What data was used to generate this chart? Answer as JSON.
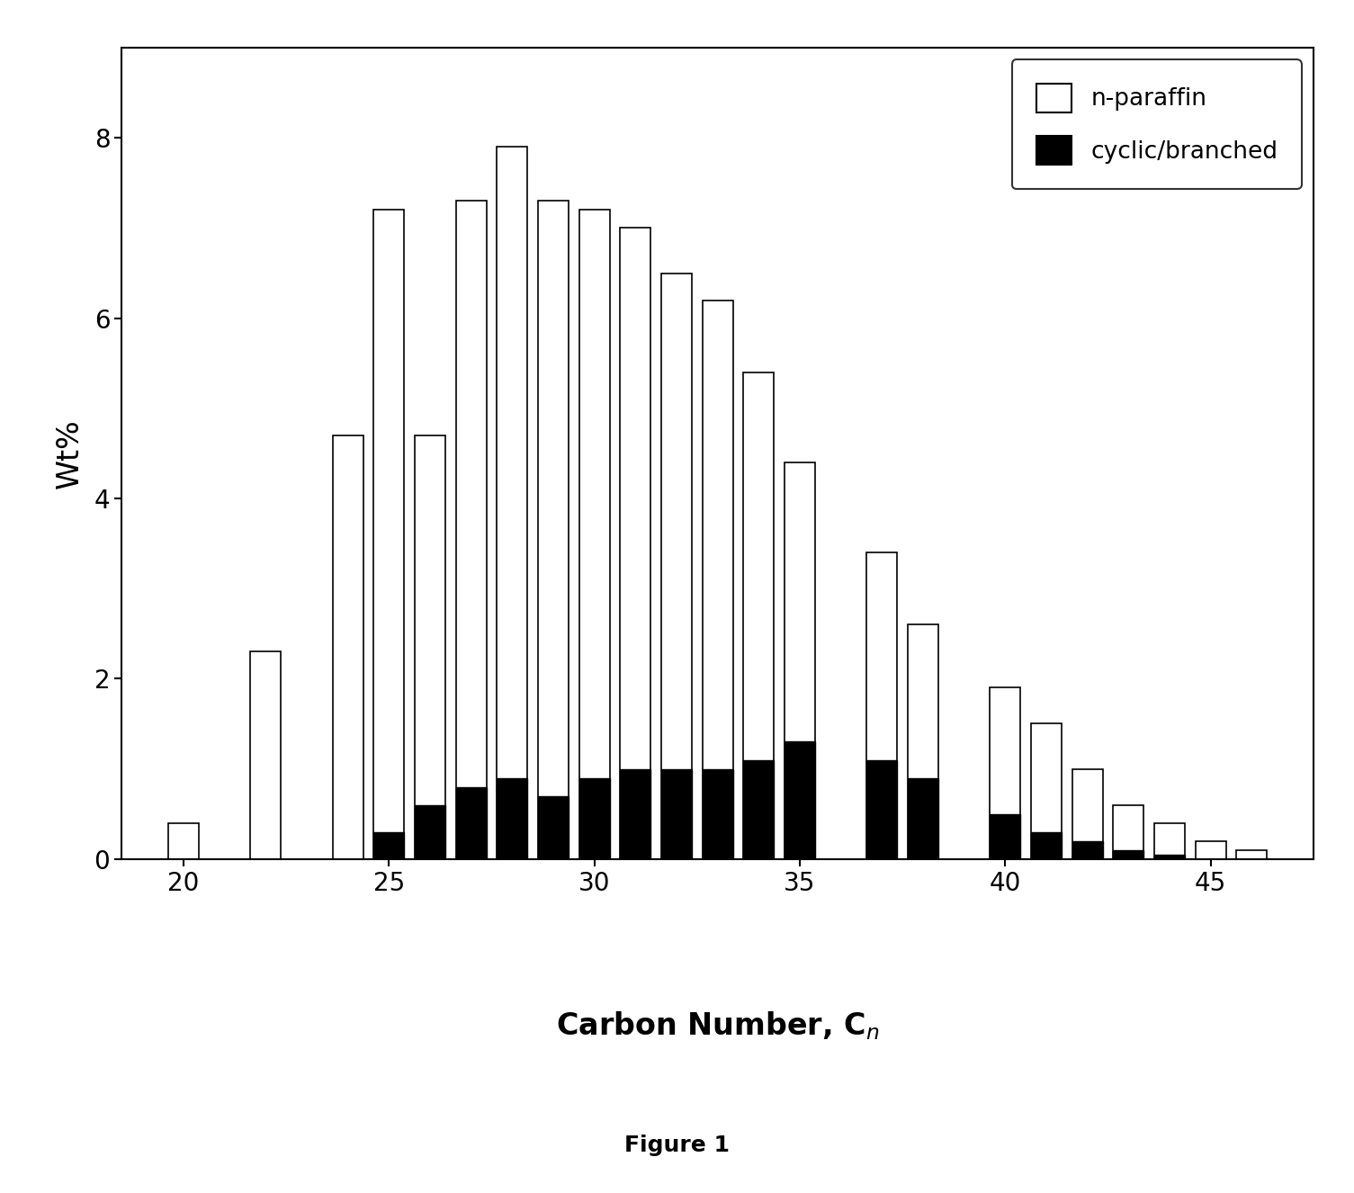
{
  "carbon_numbers": [
    20,
    21,
    22,
    23,
    24,
    25,
    26,
    27,
    28,
    29,
    30,
    31,
    32,
    33,
    34,
    35,
    36,
    37,
    38,
    39,
    40,
    41,
    42,
    43,
    44,
    45,
    46
  ],
  "n_paraffin": [
    0.4,
    0.0,
    2.3,
    0.0,
    4.7,
    7.2,
    4.7,
    7.3,
    7.9,
    7.3,
    7.2,
    7.0,
    6.5,
    6.2,
    5.4,
    4.4,
    0.0,
    3.4,
    2.6,
    0.0,
    1.9,
    1.5,
    1.0,
    0.6,
    0.4,
    0.2,
    0.1
  ],
  "cyclic_branched": [
    0.0,
    0.0,
    0.0,
    0.0,
    0.0,
    0.3,
    0.6,
    0.8,
    0.9,
    0.7,
    0.9,
    1.0,
    1.0,
    1.0,
    1.1,
    1.3,
    0.0,
    1.1,
    0.9,
    0.0,
    0.5,
    0.3,
    0.2,
    0.1,
    0.05,
    0.0,
    0.0
  ],
  "ylabel": "Wt%",
  "ylim": [
    0,
    9
  ],
  "yticks": [
    0,
    2,
    4,
    6,
    8
  ],
  "xticks": [
    20,
    25,
    30,
    35,
    40,
    45
  ],
  "xlim": [
    18.5,
    47.5
  ],
  "figure_label": "Figure 1",
  "bar_width": 0.75,
  "n_paraffin_color": "white",
  "n_paraffin_edgecolor": "black",
  "cyclic_color": "black",
  "cyclic_edgecolor": "black",
  "background_color": "white",
  "axis_fontsize": 24,
  "tick_fontsize": 20,
  "legend_fontsize": 19,
  "figure_label_fontsize": 18
}
